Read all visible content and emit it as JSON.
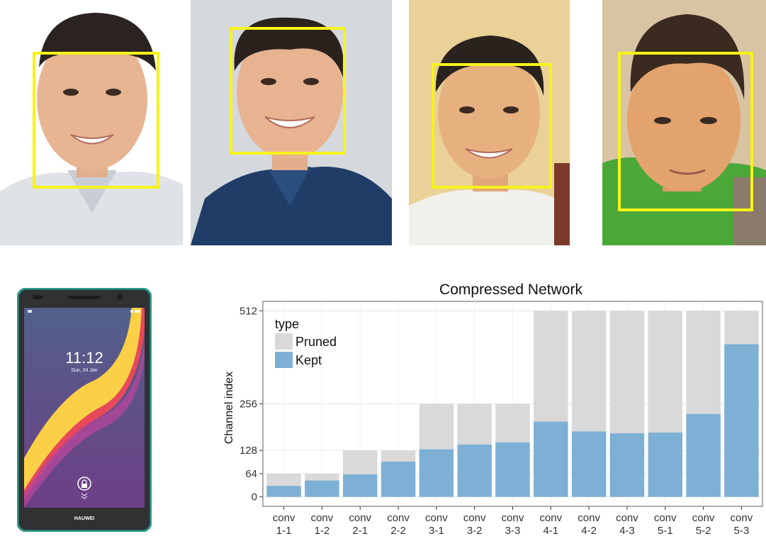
{
  "photos": [
    {
      "name": "face-photo-1"
    },
    {
      "name": "face-photo-2"
    },
    {
      "name": "face-photo-3"
    },
    {
      "name": "face-photo-4"
    }
  ],
  "phone": {
    "time": "11:12",
    "date": "Sun, 24 Jan",
    "brand": "HAUWEI",
    "lock_icon": "lock-icon"
  },
  "colors": {
    "face_box": "#f7f31a",
    "pruned": "#d9d9d9",
    "kept": "#7eb0d5",
    "phone_frame": "#2e9a8a"
  },
  "chart_data": {
    "type": "bar",
    "title": "Compressed Network",
    "xlabel": "",
    "ylabel": "Channel index",
    "ylim": [
      0,
      512
    ],
    "yticks": [
      0,
      64,
      128,
      256,
      512
    ],
    "categories": [
      [
        "conv",
        "1-1"
      ],
      [
        "conv",
        "1-2"
      ],
      [
        "conv",
        "2-1"
      ],
      [
        "conv",
        "2-2"
      ],
      [
        "conv",
        "3-1"
      ],
      [
        "conv",
        "3-2"
      ],
      [
        "conv",
        "3-3"
      ],
      [
        "conv",
        "4-1"
      ],
      [
        "conv",
        "4-2"
      ],
      [
        "conv",
        "4-3"
      ],
      [
        "conv",
        "5-1"
      ],
      [
        "conv",
        "5-2"
      ],
      [
        "conv",
        "5-3"
      ]
    ],
    "legend_title": "type",
    "legend_position": "top-left",
    "grid": true,
    "series": [
      {
        "name": "Pruned",
        "color": "#d9d9d9",
        "values": [
          64,
          64,
          128,
          128,
          256,
          256,
          256,
          512,
          512,
          512,
          512,
          512,
          512
        ]
      },
      {
        "name": "Kept",
        "color": "#7eb0d5",
        "values": [
          30,
          45,
          62,
          97,
          131,
          144,
          150,
          207,
          180,
          175,
          177,
          228,
          420
        ]
      }
    ]
  }
}
